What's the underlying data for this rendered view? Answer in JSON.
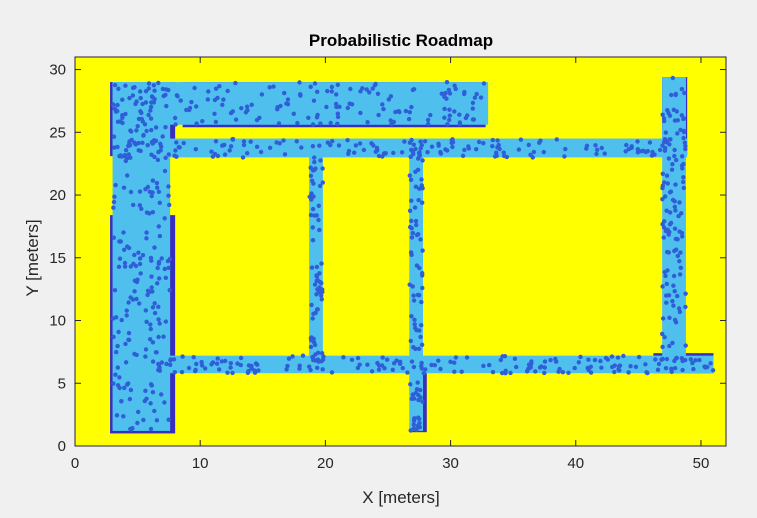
{
  "colors": {
    "figure_bg": "#f0f0f0",
    "free_space": "#ffff00",
    "obstacle": "#3a2fbd",
    "free_corridor": "#4fbfee",
    "node": "#2f5ed6",
    "axis": "#262626"
  },
  "chart_data": {
    "type": "scatter",
    "title": "Probabilistic Roadmap",
    "xlabel": "X [meters]",
    "ylabel": "Y [meters]",
    "xlim": [
      0,
      52
    ],
    "ylim": [
      0,
      31
    ],
    "xticks": [
      0,
      10,
      20,
      30,
      40,
      50
    ],
    "yticks": [
      0,
      5,
      10,
      15,
      20,
      25,
      30
    ],
    "grid": false,
    "legend": "none",
    "map_layers": {
      "obstacle_regions": [
        {
          "name": "left-block",
          "x0": 2.8,
          "x1": 8.0,
          "y0": 1.0,
          "y1": 18.4
        },
        {
          "name": "top-left-block",
          "x0": 2.8,
          "x1": 8.0,
          "y0": 23.1,
          "y1": 29.0
        },
        {
          "name": "top-band",
          "x0": 8.6,
          "x1": 32.8,
          "y0": 25.4,
          "y1": 29.0
        },
        {
          "name": "middle-block",
          "x0": 26.8,
          "x1": 28.1,
          "y0": 1.1,
          "y1": 6.0
        },
        {
          "name": "right-column",
          "x0": 46.9,
          "x1": 48.9,
          "y0": 23.2,
          "y1": 29.4
        },
        {
          "name": "right-corner-block",
          "x0": 46.2,
          "x1": 51.0,
          "y0": 5.8,
          "y1": 7.4
        }
      ],
      "free_corridors": [
        {
          "name": "left-vertical",
          "x0": 3.0,
          "x1": 7.6,
          "y0": 1.2,
          "y1": 29.0
        },
        {
          "name": "top-horizontal",
          "x0": 3.0,
          "x1": 33.0,
          "y0": 25.6,
          "y1": 29.0
        },
        {
          "name": "upper-corridor",
          "x0": 3.0,
          "x1": 48.9,
          "y0": 23.0,
          "y1": 24.5
        },
        {
          "name": "lower-corridor",
          "x0": 6.0,
          "x1": 51.0,
          "y0": 5.8,
          "y1": 7.2
        },
        {
          "name": "vertical-19",
          "x0": 18.7,
          "x1": 19.8,
          "y0": 6.0,
          "y1": 24.5
        },
        {
          "name": "vertical-27",
          "x0": 26.7,
          "x1": 27.8,
          "y0": 1.2,
          "y1": 24.5
        },
        {
          "name": "vertical-47",
          "x0": 46.9,
          "x1": 48.8,
          "y0": 5.8,
          "y1": 29.4
        }
      ]
    },
    "series": [
      {
        "marker": "filled-circle",
        "count": 1000,
        "regions": [
          {
            "x0": 3.0,
            "x1": 7.6,
            "y0": 1.2,
            "y1": 29.0,
            "n": 220
          },
          {
            "x0": 3.0,
            "x1": 33.0,
            "y0": 25.6,
            "y1": 29.0,
            "n": 160
          },
          {
            "x0": 3.0,
            "x1": 48.9,
            "y0": 23.0,
            "y1": 24.5,
            "n": 160
          },
          {
            "x0": 6.0,
            "x1": 51.0,
            "y0": 5.8,
            "y1": 7.2,
            "n": 180
          },
          {
            "x0": 18.7,
            "x1": 19.8,
            "y0": 6.0,
            "y1": 24.5,
            "n": 70
          },
          {
            "x0": 26.7,
            "x1": 27.8,
            "y0": 1.2,
            "y1": 24.5,
            "n": 90
          },
          {
            "x0": 46.9,
            "x1": 48.8,
            "y0": 5.8,
            "y1": 29.4,
            "n": 120
          }
        ]
      }
    ]
  }
}
